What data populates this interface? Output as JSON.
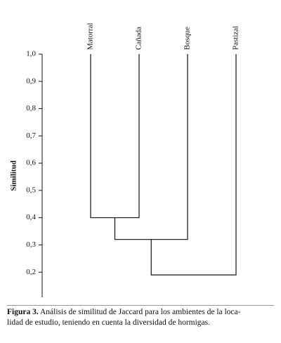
{
  "chart_data": {
    "type": "dendrogram",
    "y_label": "Similitud",
    "leaves": [
      "Matorral",
      "Cañada",
      "Bosque",
      "Pastizal"
    ],
    "merge_heights": [
      0.4,
      0.32,
      0.19
    ],
    "ylim": [
      0.1,
      1.0
    ],
    "yticks": [
      {
        "value": 1.0,
        "label": "1,0"
      },
      {
        "value": 0.9,
        "label": "0,9"
      },
      {
        "value": 0.8,
        "label": "0,8"
      },
      {
        "value": 0.7,
        "label": "0,7"
      },
      {
        "value": 0.6,
        "label": "0,6"
      },
      {
        "value": 0.5,
        "label": "0,5"
      },
      {
        "value": 0.4,
        "label": "0,4"
      },
      {
        "value": 0.3,
        "label": "0,3"
      },
      {
        "value": 0.2,
        "label": "0,2"
      }
    ],
    "color": "#111111"
  },
  "caption": {
    "label": "Figura 3.",
    "lines": [
      "Análisis de similitud de Jaccard para los ambientes de la loca-",
      "lidad de estudio, teniendo en cuenta la diversidad de hormigas."
    ]
  }
}
